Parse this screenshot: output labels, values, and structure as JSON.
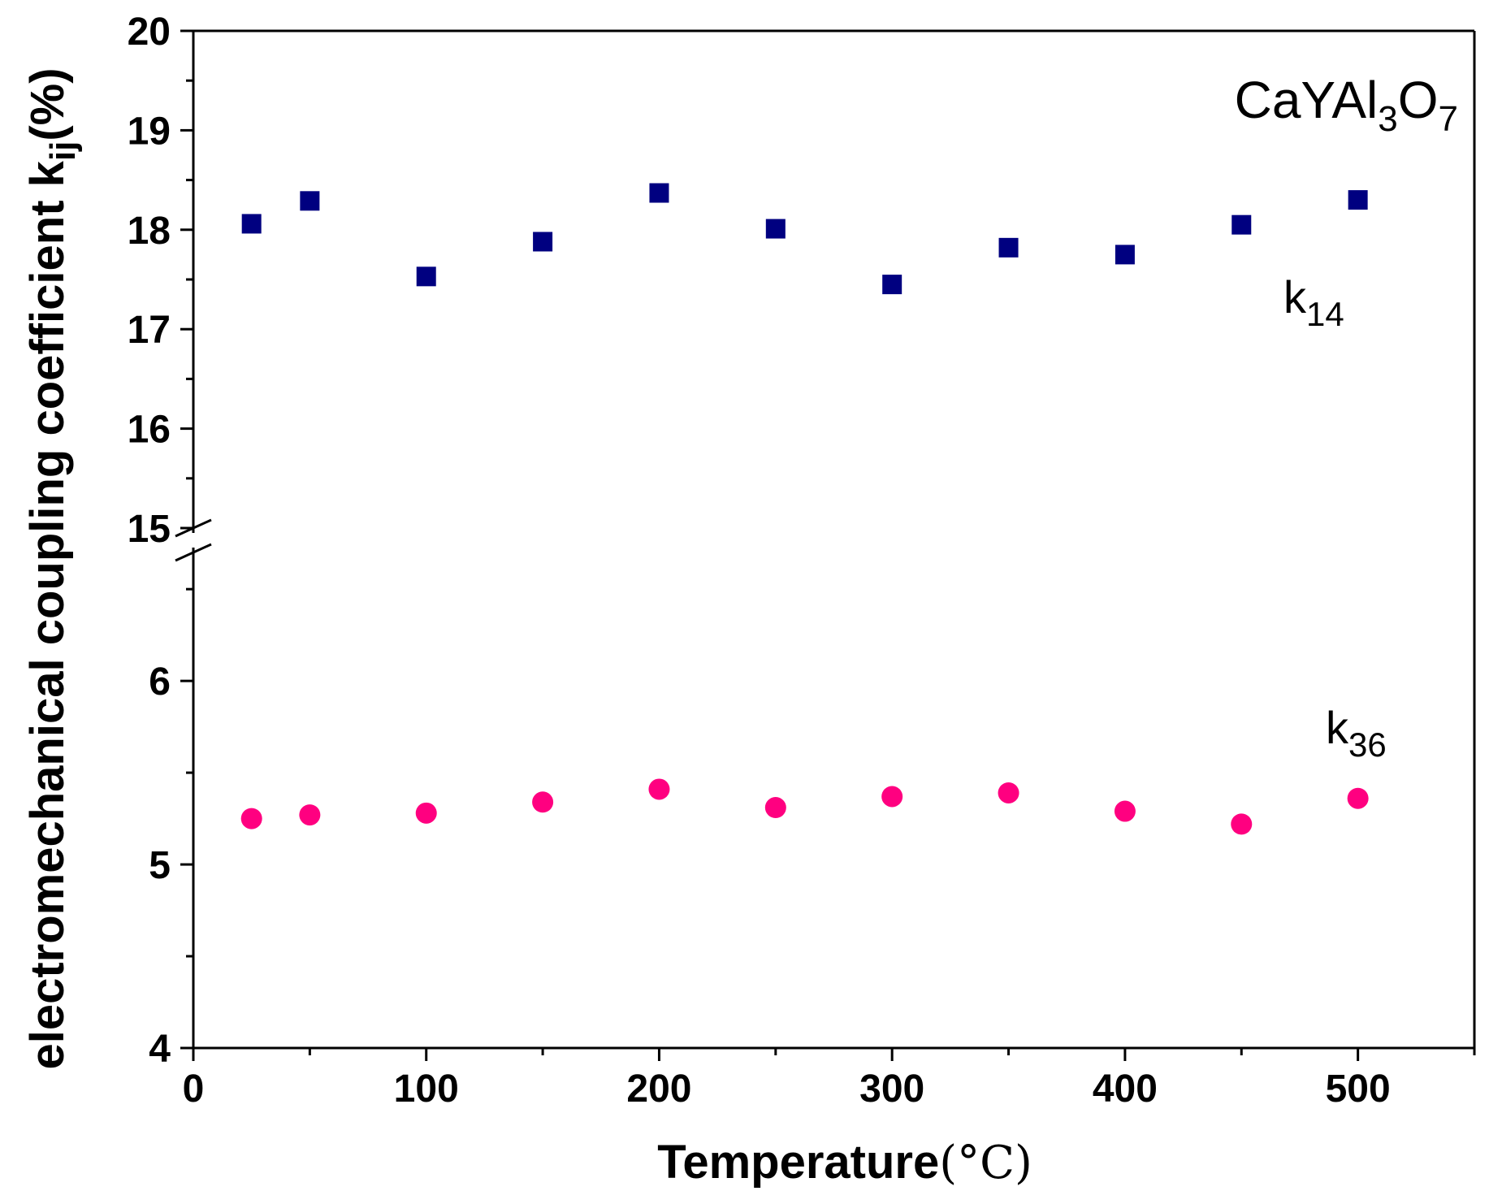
{
  "chart_data": {
    "type": "scatter",
    "title": "",
    "annotation": {
      "main": "CaYAl",
      "sub1": "3",
      "mid": "O",
      "sub2": "7"
    },
    "xlabel": {
      "text": "Temperature",
      "unit": "(°C)"
    },
    "ylabel": {
      "text": "electromechanical coupling coefficient k",
      "sub": "ij",
      "unit": "(%)"
    },
    "xlim": [
      0,
      550
    ],
    "x_ticks": [
      0,
      100,
      200,
      300,
      400,
      500
    ],
    "x_minor_ticks": [
      50,
      150,
      250,
      350,
      450,
      550
    ],
    "y_axis_break": {
      "lower_range": [
        4,
        6.7
      ],
      "upper_range": [
        15,
        20
      ],
      "break_between": [
        6.7,
        15
      ]
    },
    "y_ticks": [
      4,
      5,
      6,
      15,
      16,
      17,
      18,
      19,
      20
    ],
    "y_minor_ticks": [
      4.5,
      5.5,
      6.5,
      15.5,
      16.5,
      17.5,
      18.5,
      19.5
    ],
    "series": [
      {
        "name": "k14",
        "label_main": "k",
        "label_sub": "14",
        "marker": "square",
        "color": "#000080",
        "x": [
          25,
          50,
          100,
          150,
          200,
          250,
          300,
          350,
          400,
          450,
          500
        ],
        "y": [
          18.06,
          18.29,
          17.53,
          17.88,
          18.37,
          18.01,
          17.45,
          17.82,
          17.75,
          18.05,
          18.3
        ]
      },
      {
        "name": "k36",
        "label_main": "k",
        "label_sub": "36",
        "marker": "circle",
        "color": "#ff0080",
        "x": [
          25,
          50,
          100,
          150,
          200,
          250,
          300,
          350,
          400,
          450,
          500
        ],
        "y": [
          5.25,
          5.27,
          5.28,
          5.34,
          5.41,
          5.31,
          5.37,
          5.39,
          5.29,
          5.22,
          5.36
        ]
      }
    ]
  }
}
